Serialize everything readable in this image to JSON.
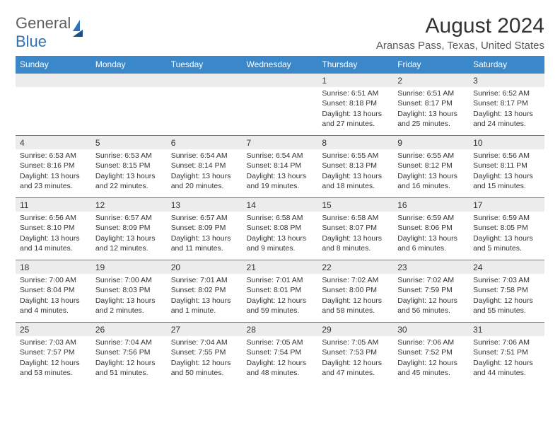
{
  "logo": {
    "text1": "General",
    "text2": "Blue"
  },
  "title": "August 2024",
  "location": "Aransas Pass, Texas, United States",
  "colors": {
    "header_bg": "#3a87c9",
    "header_text": "#ffffff",
    "daynum_bg": "#ececec",
    "week_border": "#3a87c9",
    "body_text": "#333333",
    "logo_gray": "#5f5f5f",
    "logo_blue": "#2f72b8"
  },
  "font": {
    "family": "Arial",
    "header_size": 12,
    "body_size": 10.5,
    "title_size": 30,
    "location_size": 15
  },
  "weekdays": [
    "Sunday",
    "Monday",
    "Tuesday",
    "Wednesday",
    "Thursday",
    "Friday",
    "Saturday"
  ],
  "weeks": [
    [
      null,
      null,
      null,
      null,
      {
        "n": "1",
        "sr": "Sunrise: 6:51 AM",
        "ss": "Sunset: 8:18 PM",
        "dl1": "Daylight: 13 hours",
        "dl2": "and 27 minutes."
      },
      {
        "n": "2",
        "sr": "Sunrise: 6:51 AM",
        "ss": "Sunset: 8:17 PM",
        "dl1": "Daylight: 13 hours",
        "dl2": "and 25 minutes."
      },
      {
        "n": "3",
        "sr": "Sunrise: 6:52 AM",
        "ss": "Sunset: 8:17 PM",
        "dl1": "Daylight: 13 hours",
        "dl2": "and 24 minutes."
      }
    ],
    [
      {
        "n": "4",
        "sr": "Sunrise: 6:53 AM",
        "ss": "Sunset: 8:16 PM",
        "dl1": "Daylight: 13 hours",
        "dl2": "and 23 minutes."
      },
      {
        "n": "5",
        "sr": "Sunrise: 6:53 AM",
        "ss": "Sunset: 8:15 PM",
        "dl1": "Daylight: 13 hours",
        "dl2": "and 22 minutes."
      },
      {
        "n": "6",
        "sr": "Sunrise: 6:54 AM",
        "ss": "Sunset: 8:14 PM",
        "dl1": "Daylight: 13 hours",
        "dl2": "and 20 minutes."
      },
      {
        "n": "7",
        "sr": "Sunrise: 6:54 AM",
        "ss": "Sunset: 8:14 PM",
        "dl1": "Daylight: 13 hours",
        "dl2": "and 19 minutes."
      },
      {
        "n": "8",
        "sr": "Sunrise: 6:55 AM",
        "ss": "Sunset: 8:13 PM",
        "dl1": "Daylight: 13 hours",
        "dl2": "and 18 minutes."
      },
      {
        "n": "9",
        "sr": "Sunrise: 6:55 AM",
        "ss": "Sunset: 8:12 PM",
        "dl1": "Daylight: 13 hours",
        "dl2": "and 16 minutes."
      },
      {
        "n": "10",
        "sr": "Sunrise: 6:56 AM",
        "ss": "Sunset: 8:11 PM",
        "dl1": "Daylight: 13 hours",
        "dl2": "and 15 minutes."
      }
    ],
    [
      {
        "n": "11",
        "sr": "Sunrise: 6:56 AM",
        "ss": "Sunset: 8:10 PM",
        "dl1": "Daylight: 13 hours",
        "dl2": "and 14 minutes."
      },
      {
        "n": "12",
        "sr": "Sunrise: 6:57 AM",
        "ss": "Sunset: 8:09 PM",
        "dl1": "Daylight: 13 hours",
        "dl2": "and 12 minutes."
      },
      {
        "n": "13",
        "sr": "Sunrise: 6:57 AM",
        "ss": "Sunset: 8:09 PM",
        "dl1": "Daylight: 13 hours",
        "dl2": "and 11 minutes."
      },
      {
        "n": "14",
        "sr": "Sunrise: 6:58 AM",
        "ss": "Sunset: 8:08 PM",
        "dl1": "Daylight: 13 hours",
        "dl2": "and 9 minutes."
      },
      {
        "n": "15",
        "sr": "Sunrise: 6:58 AM",
        "ss": "Sunset: 8:07 PM",
        "dl1": "Daylight: 13 hours",
        "dl2": "and 8 minutes."
      },
      {
        "n": "16",
        "sr": "Sunrise: 6:59 AM",
        "ss": "Sunset: 8:06 PM",
        "dl1": "Daylight: 13 hours",
        "dl2": "and 6 minutes."
      },
      {
        "n": "17",
        "sr": "Sunrise: 6:59 AM",
        "ss": "Sunset: 8:05 PM",
        "dl1": "Daylight: 13 hours",
        "dl2": "and 5 minutes."
      }
    ],
    [
      {
        "n": "18",
        "sr": "Sunrise: 7:00 AM",
        "ss": "Sunset: 8:04 PM",
        "dl1": "Daylight: 13 hours",
        "dl2": "and 4 minutes."
      },
      {
        "n": "19",
        "sr": "Sunrise: 7:00 AM",
        "ss": "Sunset: 8:03 PM",
        "dl1": "Daylight: 13 hours",
        "dl2": "and 2 minutes."
      },
      {
        "n": "20",
        "sr": "Sunrise: 7:01 AM",
        "ss": "Sunset: 8:02 PM",
        "dl1": "Daylight: 13 hours",
        "dl2": "and 1 minute."
      },
      {
        "n": "21",
        "sr": "Sunrise: 7:01 AM",
        "ss": "Sunset: 8:01 PM",
        "dl1": "Daylight: 12 hours",
        "dl2": "and 59 minutes."
      },
      {
        "n": "22",
        "sr": "Sunrise: 7:02 AM",
        "ss": "Sunset: 8:00 PM",
        "dl1": "Daylight: 12 hours",
        "dl2": "and 58 minutes."
      },
      {
        "n": "23",
        "sr": "Sunrise: 7:02 AM",
        "ss": "Sunset: 7:59 PM",
        "dl1": "Daylight: 12 hours",
        "dl2": "and 56 minutes."
      },
      {
        "n": "24",
        "sr": "Sunrise: 7:03 AM",
        "ss": "Sunset: 7:58 PM",
        "dl1": "Daylight: 12 hours",
        "dl2": "and 55 minutes."
      }
    ],
    [
      {
        "n": "25",
        "sr": "Sunrise: 7:03 AM",
        "ss": "Sunset: 7:57 PM",
        "dl1": "Daylight: 12 hours",
        "dl2": "and 53 minutes."
      },
      {
        "n": "26",
        "sr": "Sunrise: 7:04 AM",
        "ss": "Sunset: 7:56 PM",
        "dl1": "Daylight: 12 hours",
        "dl2": "and 51 minutes."
      },
      {
        "n": "27",
        "sr": "Sunrise: 7:04 AM",
        "ss": "Sunset: 7:55 PM",
        "dl1": "Daylight: 12 hours",
        "dl2": "and 50 minutes."
      },
      {
        "n": "28",
        "sr": "Sunrise: 7:05 AM",
        "ss": "Sunset: 7:54 PM",
        "dl1": "Daylight: 12 hours",
        "dl2": "and 48 minutes."
      },
      {
        "n": "29",
        "sr": "Sunrise: 7:05 AM",
        "ss": "Sunset: 7:53 PM",
        "dl1": "Daylight: 12 hours",
        "dl2": "and 47 minutes."
      },
      {
        "n": "30",
        "sr": "Sunrise: 7:06 AM",
        "ss": "Sunset: 7:52 PM",
        "dl1": "Daylight: 12 hours",
        "dl2": "and 45 minutes."
      },
      {
        "n": "31",
        "sr": "Sunrise: 7:06 AM",
        "ss": "Sunset: 7:51 PM",
        "dl1": "Daylight: 12 hours",
        "dl2": "and 44 minutes."
      }
    ]
  ]
}
